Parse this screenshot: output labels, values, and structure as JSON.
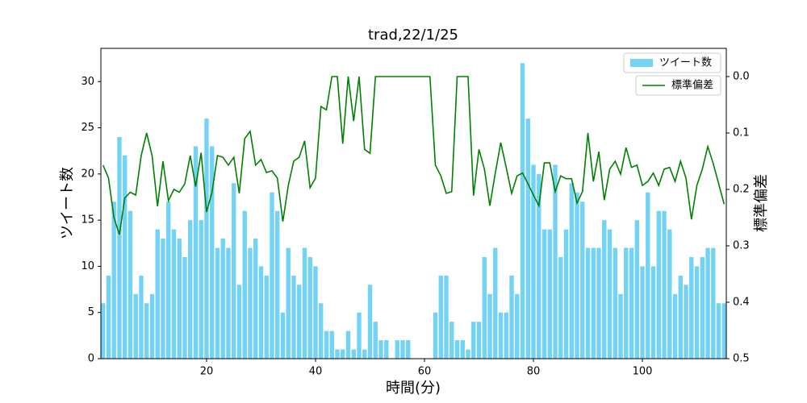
{
  "chart_data": {
    "type": "bar",
    "title": "trad,22/1/25",
    "x_label": "時間(分)",
    "y_label": "ツイート数",
    "y2_label": "標準偏差",
    "x": [
      1,
      2,
      3,
      4,
      5,
      6,
      7,
      8,
      9,
      10,
      11,
      12,
      13,
      14,
      15,
      16,
      17,
      18,
      19,
      20,
      21,
      22,
      23,
      24,
      25,
      26,
      27,
      28,
      29,
      30,
      31,
      32,
      33,
      34,
      35,
      36,
      37,
      38,
      39,
      40,
      41,
      42,
      43,
      44,
      45,
      46,
      47,
      48,
      49,
      50,
      51,
      52,
      53,
      54,
      55,
      56,
      57,
      58,
      59,
      60,
      61,
      62,
      63,
      64,
      65,
      66,
      67,
      68,
      69,
      70,
      71,
      72,
      73,
      74,
      75,
      76,
      77,
      78,
      79,
      80,
      81,
      82,
      83,
      84,
      85,
      86,
      87,
      88,
      89,
      90,
      91,
      92,
      93,
      94,
      95,
      96,
      97,
      98,
      99,
      100,
      101,
      102,
      103,
      104,
      105,
      106,
      107,
      108,
      109,
      110,
      111,
      112,
      113,
      114,
      115
    ],
    "series": [
      {
        "name": "ツイート数",
        "type": "bar",
        "color": "#73d3f7",
        "values": [
          6,
          9,
          17,
          24,
          22,
          16,
          7,
          9,
          6,
          7,
          14,
          13,
          17,
          14,
          13,
          11,
          15,
          23,
          15,
          26,
          23,
          12,
          13,
          12,
          19,
          8,
          16,
          12,
          13,
          10,
          9,
          18,
          16,
          5,
          12,
          9,
          8,
          12,
          11,
          10,
          6,
          3,
          3,
          1,
          1,
          3,
          1,
          5,
          1,
          8,
          4,
          2,
          2,
          0,
          2,
          2,
          2,
          0,
          0,
          0,
          0,
          5,
          9,
          9,
          4,
          2,
          2,
          1,
          4,
          4,
          11,
          7,
          12,
          5,
          5,
          9,
          7,
          32,
          26,
          21,
          20,
          14,
          14,
          21,
          11,
          14,
          19,
          18,
          17,
          12,
          12,
          12,
          15,
          14,
          12,
          7,
          12,
          12,
          15,
          10,
          18,
          10,
          16,
          16,
          14,
          7,
          9,
          8,
          11,
          10,
          11,
          12,
          12,
          6,
          6
        ]
      },
      {
        "name": "標準偏差",
        "type": "line",
        "axis": "y2",
        "color": "#008000",
        "values": [
          0.157,
          0.18,
          0.25,
          0.28,
          0.215,
          0.205,
          0.21,
          0.14,
          0.1,
          0.14,
          0.23,
          0.15,
          0.22,
          0.2,
          0.205,
          0.19,
          0.14,
          0.195,
          0.135,
          0.24,
          0.205,
          0.14,
          0.143,
          0.157,
          0.143,
          0.207,
          0.11,
          0.097,
          0.157,
          0.147,
          0.17,
          0.167,
          0.18,
          0.257,
          0.193,
          0.15,
          0.143,
          0.114,
          0.197,
          0.18,
          0.053,
          0.059,
          0,
          0,
          0.119,
          0,
          0.079,
          0,
          0.129,
          0.136,
          0,
          0,
          0,
          0,
          0,
          0,
          0,
          0,
          0,
          0,
          0,
          0.157,
          0.176,
          0.207,
          0.204,
          0,
          0,
          0,
          0.211,
          0.129,
          0.164,
          0.229,
          0.171,
          0.117,
          0.161,
          0.207,
          0.176,
          0.171,
          0.19,
          0.21,
          0.229,
          0.153,
          0.153,
          0.204,
          0.176,
          0.181,
          0.181,
          0.224,
          0.204,
          0.1,
          0.186,
          0.133,
          0.219,
          0.164,
          0.15,
          0.173,
          0.126,
          0.161,
          0.157,
          0.193,
          0.186,
          0.171,
          0.193,
          0.164,
          0.161,
          0.186,
          0.15,
          0.18,
          0.253,
          0.193,
          0.164,
          0.124,
          0.154,
          0.19,
          0.226
        ]
      }
    ],
    "xlim": [
      0.6,
      115.4
    ],
    "xticks": [
      20,
      40,
      60,
      80,
      100
    ],
    "ylim": [
      0,
      33.6
    ],
    "yticks": [
      0,
      5,
      10,
      15,
      20,
      25,
      30
    ],
    "y2lim": [
      0.5,
      -0.05
    ],
    "y2ticks": [
      {
        "value": 0,
        "label": "0.0"
      },
      0.1,
      0.2,
      0.3,
      0.4,
      0.5
    ],
    "legend": "upper right"
  }
}
